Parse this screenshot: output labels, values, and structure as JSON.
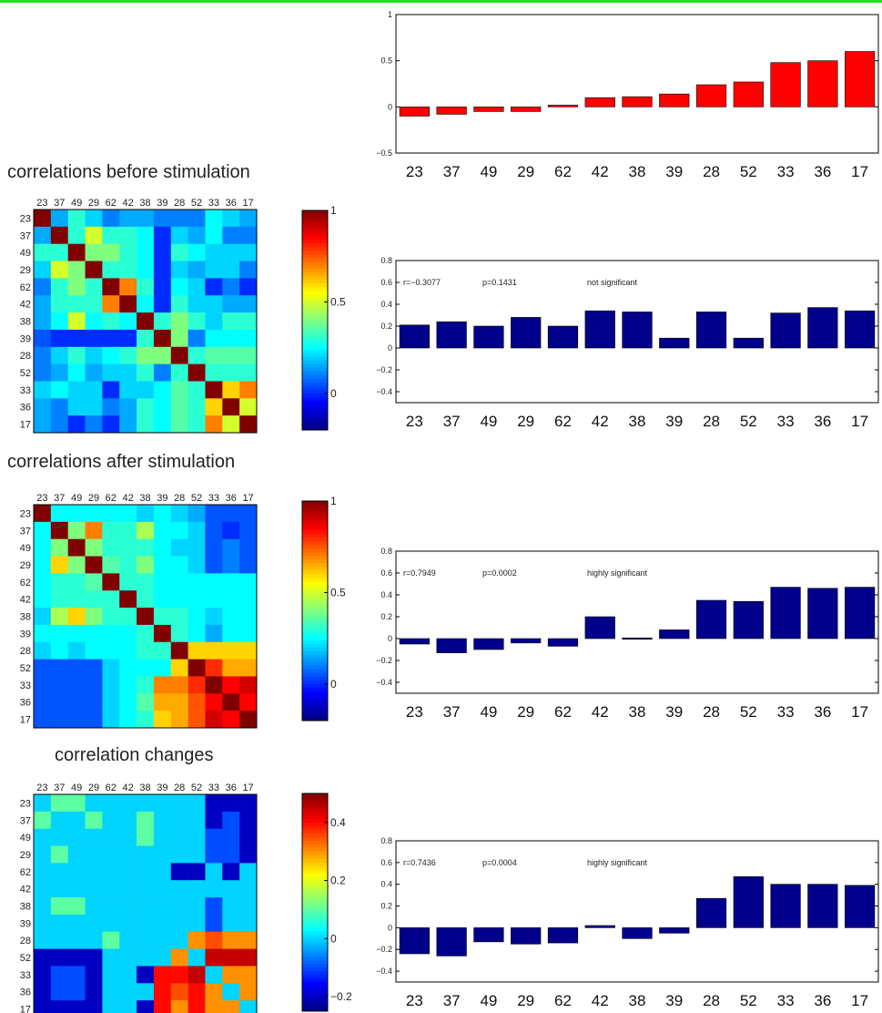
{
  "chart_data": [
    {
      "id": "top-bar",
      "type": "bar",
      "color": "#ff0000",
      "categories": [
        "23",
        "37",
        "49",
        "29",
        "62",
        "42",
        "38",
        "39",
        "28",
        "52",
        "33",
        "36",
        "17"
      ],
      "values": [
        -0.1,
        -0.08,
        -0.05,
        -0.05,
        0.02,
        0.1,
        0.11,
        0.14,
        0.24,
        0.27,
        0.48,
        0.5,
        0.6
      ],
      "ylim": [
        -0.5,
        1
      ],
      "yticks": [
        -0.5,
        0,
        0.5,
        1
      ],
      "ytick_labels": [
        "−0.5",
        "0",
        "0.5",
        "1"
      ],
      "grid": false
    },
    {
      "id": "heat-before",
      "type": "heatmap",
      "title": "correlations before stimulation",
      "labels": [
        "23",
        "37",
        "49",
        "29",
        "62",
        "42",
        "38",
        "39",
        "28",
        "52",
        "33",
        "36",
        "17"
      ],
      "matrix": [
        [
          1.0,
          0.15,
          0.3,
          0.2,
          0.1,
          0.15,
          0.15,
          0.1,
          0.1,
          0.1,
          0.25,
          0.2,
          0.15
        ],
        [
          0.15,
          1.0,
          0.3,
          0.5,
          0.3,
          0.3,
          0.25,
          0.0,
          0.2,
          0.15,
          0.25,
          0.1,
          0.1
        ],
        [
          0.3,
          0.3,
          1.0,
          0.4,
          0.4,
          0.3,
          0.25,
          0.0,
          0.3,
          0.25,
          0.2,
          0.2,
          0.2
        ],
        [
          0.2,
          0.5,
          0.4,
          1.0,
          0.3,
          0.3,
          0.25,
          0.0,
          0.2,
          0.15,
          0.2,
          0.2,
          0.1
        ],
        [
          0.1,
          0.3,
          0.4,
          0.3,
          1.0,
          0.7,
          0.3,
          0.0,
          0.25,
          0.2,
          0.0,
          0.1,
          0.0
        ],
        [
          0.15,
          0.3,
          0.3,
          0.3,
          0.7,
          1.0,
          0.25,
          0.0,
          0.3,
          0.2,
          0.2,
          0.15,
          0.15
        ],
        [
          0.15,
          0.25,
          0.5,
          0.25,
          0.3,
          0.25,
          1.0,
          0.3,
          0.4,
          0.3,
          0.2,
          0.3,
          0.3
        ],
        [
          0.05,
          0.0,
          0.0,
          0.0,
          0.0,
          0.0,
          0.3,
          1.0,
          0.4,
          0.1,
          0.25,
          0.25,
          0.25
        ],
        [
          0.1,
          0.2,
          0.3,
          0.2,
          0.25,
          0.3,
          0.4,
          0.4,
          1.0,
          0.3,
          0.35,
          0.35,
          0.35
        ],
        [
          0.1,
          0.15,
          0.25,
          0.15,
          0.2,
          0.2,
          0.3,
          0.1,
          0.3,
          1.0,
          0.3,
          0.3,
          0.3
        ],
        [
          0.2,
          0.25,
          0.2,
          0.2,
          0.0,
          0.2,
          0.2,
          0.25,
          0.35,
          0.3,
          1.0,
          0.6,
          0.7
        ],
        [
          0.15,
          0.1,
          0.2,
          0.2,
          0.1,
          0.15,
          0.3,
          0.25,
          0.35,
          0.3,
          0.6,
          1.0,
          0.5
        ],
        [
          0.15,
          0.1,
          0.0,
          0.1,
          0.0,
          0.15,
          0.3,
          0.25,
          0.35,
          0.3,
          0.7,
          0.5,
          1.0
        ]
      ],
      "clim": [
        -0.2,
        1
      ],
      "colorbar_ticks": [
        0,
        0.5,
        1
      ],
      "colorbar_labels": [
        "0",
        "0.5",
        "1"
      ],
      "colormap": "jet"
    },
    {
      "id": "bar-before",
      "type": "bar",
      "color": "#00008b",
      "categories": [
        "23",
        "37",
        "49",
        "29",
        "62",
        "42",
        "38",
        "39",
        "28",
        "52",
        "33",
        "36",
        "17"
      ],
      "values": [
        0.21,
        0.24,
        0.2,
        0.28,
        0.2,
        0.34,
        0.33,
        0.09,
        0.33,
        0.09,
        0.32,
        0.37,
        0.34
      ],
      "ylim": [
        -0.5,
        0.8
      ],
      "yticks": [
        -0.4,
        -0.2,
        0,
        0.2,
        0.4,
        0.6,
        0.8
      ],
      "ytick_labels": [
        "−0.4",
        "−0.2",
        "0",
        "0.2",
        "0.4",
        "0.6",
        "0.8"
      ],
      "annotations": [
        "r=−0.3077",
        "p=0.1431",
        "not significant"
      ],
      "grid": false
    },
    {
      "id": "heat-after",
      "type": "heatmap",
      "title": "correlations after stimulation",
      "labels": [
        "23",
        "37",
        "49",
        "29",
        "62",
        "42",
        "38",
        "39",
        "28",
        "52",
        "33",
        "36",
        "17"
      ],
      "matrix": [
        [
          1.0,
          0.25,
          0.25,
          0.25,
          0.25,
          0.25,
          0.2,
          0.25,
          0.2,
          0.15,
          0.05,
          0.05,
          0.05
        ],
        [
          0.25,
          1.0,
          0.4,
          0.7,
          0.3,
          0.3,
          0.45,
          0.25,
          0.25,
          0.2,
          0.05,
          0.0,
          0.05
        ],
        [
          0.25,
          0.4,
          1.0,
          0.4,
          0.3,
          0.3,
          0.3,
          0.25,
          0.2,
          0.2,
          0.05,
          0.1,
          0.05
        ],
        [
          0.25,
          0.6,
          0.4,
          1.0,
          0.35,
          0.3,
          0.4,
          0.25,
          0.25,
          0.2,
          0.05,
          0.1,
          0.05
        ],
        [
          0.25,
          0.3,
          0.3,
          0.35,
          1.0,
          0.3,
          0.3,
          0.25,
          0.25,
          0.25,
          0.25,
          0.25,
          0.25
        ],
        [
          0.25,
          0.3,
          0.3,
          0.3,
          0.3,
          1.0,
          0.3,
          0.25,
          0.25,
          0.25,
          0.25,
          0.25,
          0.25
        ],
        [
          0.2,
          0.45,
          0.6,
          0.4,
          0.3,
          0.3,
          1.0,
          0.3,
          0.3,
          0.25,
          0.2,
          0.25,
          0.25
        ],
        [
          0.25,
          0.25,
          0.25,
          0.25,
          0.25,
          0.25,
          0.3,
          1.0,
          0.3,
          0.25,
          0.15,
          0.25,
          0.25
        ],
        [
          0.2,
          0.25,
          0.2,
          0.25,
          0.25,
          0.25,
          0.3,
          0.3,
          1.0,
          0.6,
          0.6,
          0.6,
          0.6
        ],
        [
          0.05,
          0.05,
          0.05,
          0.05,
          0.2,
          0.25,
          0.25,
          0.25,
          0.6,
          1.0,
          0.8,
          0.65,
          0.65
        ],
        [
          0.05,
          0.05,
          0.05,
          0.05,
          0.2,
          0.25,
          0.3,
          0.7,
          0.7,
          0.8,
          1.0,
          0.85,
          0.9
        ],
        [
          0.05,
          0.05,
          0.05,
          0.05,
          0.2,
          0.25,
          0.35,
          0.65,
          0.65,
          0.75,
          0.85,
          1.0,
          0.85
        ],
        [
          0.05,
          0.05,
          0.05,
          0.05,
          0.2,
          0.25,
          0.3,
          0.6,
          0.65,
          0.75,
          0.9,
          0.85,
          1.0
        ]
      ],
      "clim": [
        -0.2,
        1
      ],
      "colorbar_ticks": [
        0,
        0.5,
        1
      ],
      "colorbar_labels": [
        "0",
        "0.5",
        "1"
      ],
      "colormap": "jet"
    },
    {
      "id": "bar-after",
      "type": "bar",
      "color": "#00008b",
      "categories": [
        "23",
        "37",
        "49",
        "29",
        "62",
        "42",
        "38",
        "39",
        "28",
        "52",
        "33",
        "36",
        "17"
      ],
      "values": [
        -0.05,
        -0.13,
        -0.1,
        -0.04,
        -0.07,
        0.2,
        0.01,
        0.08,
        0.35,
        0.34,
        0.47,
        0.46,
        0.47
      ],
      "ylim": [
        -0.5,
        0.8
      ],
      "yticks": [
        -0.4,
        -0.2,
        0,
        0.2,
        0.4,
        0.6,
        0.8
      ],
      "ytick_labels": [
        "−0.4",
        "−0.2",
        "0",
        "0.2",
        "0.4",
        "0.6",
        "0.8"
      ],
      "annotations": [
        "r=0.7949",
        "p=0.0002",
        "highly significant"
      ],
      "grid": false
    },
    {
      "id": "heat-change",
      "type": "heatmap",
      "title": "correlation changes",
      "labels": [
        "23",
        "37",
        "49",
        "29",
        "62",
        "42",
        "38",
        "39",
        "28",
        "52",
        "33",
        "36",
        "17"
      ],
      "matrix": [
        [
          0.0,
          0.1,
          0.1,
          0.0,
          0.0,
          0.0,
          0.0,
          0.0,
          0.0,
          0.0,
          -0.2,
          -0.2,
          -0.2
        ],
        [
          0.1,
          0.0,
          0.0,
          0.1,
          0.0,
          0.0,
          0.1,
          0.0,
          0.0,
          0.0,
          -0.2,
          -0.1,
          -0.2
        ],
        [
          0.0,
          0.0,
          0.0,
          0.0,
          0.0,
          0.0,
          0.1,
          0.0,
          0.0,
          0.0,
          -0.1,
          -0.1,
          -0.2
        ],
        [
          0.0,
          0.1,
          0.0,
          0.0,
          0.0,
          0.0,
          0.0,
          0.0,
          0.0,
          0.0,
          -0.1,
          -0.1,
          -0.2
        ],
        [
          0.0,
          0.0,
          0.0,
          0.0,
          0.0,
          0.0,
          0.0,
          0.0,
          -0.2,
          -0.2,
          0.0,
          -0.2,
          0.0
        ],
        [
          0.0,
          0.0,
          0.0,
          0.0,
          0.0,
          0.0,
          0.0,
          0.0,
          0.0,
          0.0,
          0.0,
          0.0,
          0.0
        ],
        [
          0.0,
          0.1,
          0.1,
          0.0,
          0.0,
          0.0,
          0.0,
          0.0,
          0.0,
          0.0,
          -0.1,
          0.0,
          0.0
        ],
        [
          0.0,
          0.0,
          0.0,
          0.0,
          0.0,
          0.0,
          0.0,
          0.0,
          0.0,
          0.0,
          -0.1,
          0.0,
          0.0
        ],
        [
          0.0,
          0.0,
          0.0,
          0.0,
          0.1,
          0.0,
          0.0,
          0.0,
          0.0,
          0.3,
          0.35,
          0.3,
          0.3
        ],
        [
          -0.2,
          -0.2,
          -0.2,
          -0.2,
          0.0,
          0.0,
          0.0,
          0.0,
          0.3,
          0.0,
          0.45,
          0.45,
          0.45
        ],
        [
          -0.2,
          -0.1,
          -0.1,
          -0.2,
          0.0,
          0.0,
          -0.2,
          0.4,
          0.4,
          0.45,
          0.0,
          0.3,
          0.3
        ],
        [
          -0.2,
          -0.1,
          -0.1,
          -0.2,
          0.0,
          0.0,
          0.0,
          0.4,
          0.35,
          0.4,
          0.3,
          0.0,
          0.3
        ],
        [
          -0.2,
          -0.2,
          -0.2,
          -0.2,
          0.0,
          0.0,
          -0.2,
          0.4,
          0.3,
          0.4,
          0.3,
          0.3,
          0.0
        ]
      ],
      "clim": [
        -0.25,
        0.5
      ],
      "colorbar_ticks": [
        -0.2,
        0,
        0.2,
        0.4
      ],
      "colorbar_labels": [
        "−0.2",
        "0",
        "0.2",
        "0.4"
      ],
      "colormap": "jet"
    },
    {
      "id": "bar-change",
      "type": "bar",
      "color": "#00008b",
      "categories": [
        "23",
        "37",
        "49",
        "29",
        "62",
        "42",
        "38",
        "39",
        "28",
        "52",
        "33",
        "36",
        "17"
      ],
      "values": [
        -0.24,
        -0.26,
        -0.13,
        -0.15,
        -0.14,
        0.02,
        -0.1,
        -0.05,
        0.27,
        0.47,
        0.4,
        0.4,
        0.39
      ],
      "ylim": [
        -0.5,
        0.8
      ],
      "yticks": [
        -0.4,
        -0.2,
        0,
        0.2,
        0.4,
        0.6,
        0.8
      ],
      "ytick_labels": [
        "−0.4",
        "−0.2",
        "0",
        "0.2",
        "0.4",
        "0.6",
        "0.8"
      ],
      "annotations": [
        "r=0.7436",
        "p=0.0004",
        "highly significant"
      ],
      "grid": false
    }
  ]
}
